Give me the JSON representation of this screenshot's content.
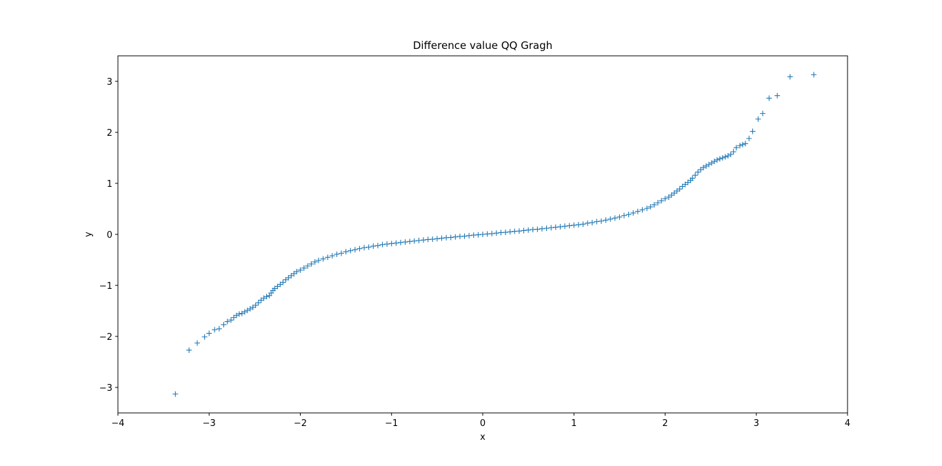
{
  "chart_data": {
    "type": "scatter",
    "title": "Difference value QQ Gragh",
    "xlabel": "x",
    "ylabel": "y",
    "xlim": [
      -4,
      4
    ],
    "ylim": [
      -3.5,
      3.5
    ],
    "xticks": [
      -4,
      -3,
      -2,
      -1,
      0,
      1,
      2,
      3,
      4
    ],
    "xtick_labels": [
      "−4",
      "−3",
      "−2",
      "−1",
      "0",
      "1",
      "2",
      "3",
      "4"
    ],
    "yticks": [
      -3,
      -2,
      -1,
      0,
      1,
      2,
      3
    ],
    "ytick_labels": [
      "−3",
      "−2",
      "−1",
      "0",
      "1",
      "2",
      "3"
    ],
    "grid": false,
    "marker": "+",
    "color": "#1f77b4",
    "series": [
      {
        "points": [
          [
            -3.37,
            -3.13
          ],
          [
            -3.22,
            -2.27
          ],
          [
            -3.13,
            -2.13
          ],
          [
            -3.05,
            -2.01
          ],
          [
            -3.0,
            -1.94
          ],
          [
            -2.94,
            -1.87
          ],
          [
            -2.89,
            -1.85
          ],
          [
            -2.84,
            -1.77
          ],
          [
            -2.8,
            -1.71
          ],
          [
            -2.76,
            -1.68
          ],
          [
            -2.73,
            -1.63
          ],
          [
            -2.7,
            -1.59
          ],
          [
            -2.67,
            -1.56
          ],
          [
            -2.64,
            -1.55
          ],
          [
            -2.61,
            -1.52
          ],
          [
            -2.58,
            -1.49
          ],
          [
            -2.55,
            -1.46
          ],
          [
            -2.52,
            -1.43
          ],
          [
            -2.49,
            -1.39
          ],
          [
            -2.46,
            -1.34
          ],
          [
            -2.43,
            -1.29
          ],
          [
            -2.4,
            -1.25
          ],
          [
            -2.37,
            -1.22
          ],
          [
            -2.34,
            -1.2
          ],
          [
            -2.32,
            -1.15
          ],
          [
            -2.3,
            -1.1
          ],
          [
            -2.28,
            -1.06
          ],
          [
            -2.25,
            -1.02
          ],
          [
            -2.22,
            -0.98
          ],
          [
            -2.19,
            -0.94
          ],
          [
            -2.16,
            -0.89
          ],
          [
            -2.13,
            -0.85
          ],
          [
            -2.1,
            -0.81
          ],
          [
            -2.07,
            -0.77
          ],
          [
            -2.04,
            -0.73
          ],
          [
            -2.0,
            -0.7
          ],
          [
            -1.96,
            -0.66
          ],
          [
            -1.92,
            -0.62
          ],
          [
            -1.88,
            -0.58
          ],
          [
            -1.84,
            -0.54
          ],
          [
            -1.8,
            -0.51
          ],
          [
            -1.75,
            -0.48
          ],
          [
            -1.7,
            -0.45
          ],
          [
            -1.65,
            -0.42
          ],
          [
            -1.6,
            -0.39
          ],
          [
            -1.55,
            -0.37
          ],
          [
            -1.5,
            -0.34
          ],
          [
            -1.45,
            -0.32
          ],
          [
            -1.4,
            -0.3
          ],
          [
            -1.35,
            -0.28
          ],
          [
            -1.3,
            -0.26
          ],
          [
            -1.25,
            -0.25
          ],
          [
            -1.2,
            -0.23
          ],
          [
            -1.15,
            -0.22
          ],
          [
            -1.1,
            -0.2
          ],
          [
            -1.05,
            -0.19
          ],
          [
            -1.0,
            -0.18
          ],
          [
            -0.95,
            -0.17
          ],
          [
            -0.9,
            -0.16
          ],
          [
            -0.85,
            -0.15
          ],
          [
            -0.8,
            -0.14
          ],
          [
            -0.75,
            -0.13
          ],
          [
            -0.7,
            -0.12
          ],
          [
            -0.65,
            -0.11
          ],
          [
            -0.6,
            -0.1
          ],
          [
            -0.55,
            -0.095
          ],
          [
            -0.5,
            -0.085
          ],
          [
            -0.45,
            -0.075
          ],
          [
            -0.4,
            -0.065
          ],
          [
            -0.35,
            -0.06
          ],
          [
            -0.3,
            -0.05
          ],
          [
            -0.25,
            -0.04
          ],
          [
            -0.2,
            -0.035
          ],
          [
            -0.15,
            -0.025
          ],
          [
            -0.1,
            -0.015
          ],
          [
            -0.05,
            -0.008
          ],
          [
            0.0,
            0.0
          ],
          [
            0.05,
            0.008
          ],
          [
            0.1,
            0.015
          ],
          [
            0.15,
            0.025
          ],
          [
            0.2,
            0.035
          ],
          [
            0.25,
            0.04
          ],
          [
            0.3,
            0.05
          ],
          [
            0.35,
            0.06
          ],
          [
            0.4,
            0.065
          ],
          [
            0.45,
            0.075
          ],
          [
            0.5,
            0.085
          ],
          [
            0.55,
            0.095
          ],
          [
            0.6,
            0.1
          ],
          [
            0.65,
            0.11
          ],
          [
            0.7,
            0.12
          ],
          [
            0.75,
            0.13
          ],
          [
            0.8,
            0.14
          ],
          [
            0.85,
            0.15
          ],
          [
            0.9,
            0.16
          ],
          [
            0.95,
            0.17
          ],
          [
            1.0,
            0.18
          ],
          [
            1.05,
            0.19
          ],
          [
            1.1,
            0.2
          ],
          [
            1.15,
            0.22
          ],
          [
            1.2,
            0.23
          ],
          [
            1.25,
            0.25
          ],
          [
            1.3,
            0.26
          ],
          [
            1.35,
            0.28
          ],
          [
            1.4,
            0.3
          ],
          [
            1.45,
            0.32
          ],
          [
            1.5,
            0.34
          ],
          [
            1.55,
            0.37
          ],
          [
            1.6,
            0.39
          ],
          [
            1.65,
            0.42
          ],
          [
            1.7,
            0.45
          ],
          [
            1.75,
            0.48
          ],
          [
            1.8,
            0.51
          ],
          [
            1.84,
            0.54
          ],
          [
            1.88,
            0.58
          ],
          [
            1.92,
            0.62
          ],
          [
            1.96,
            0.66
          ],
          [
            2.0,
            0.7
          ],
          [
            2.04,
            0.73
          ],
          [
            2.07,
            0.77
          ],
          [
            2.1,
            0.81
          ],
          [
            2.13,
            0.85
          ],
          [
            2.16,
            0.89
          ],
          [
            2.19,
            0.94
          ],
          [
            2.22,
            0.98
          ],
          [
            2.25,
            1.02
          ],
          [
            2.28,
            1.06
          ],
          [
            2.3,
            1.1
          ],
          [
            2.33,
            1.16
          ],
          [
            2.36,
            1.22
          ],
          [
            2.39,
            1.27
          ],
          [
            2.42,
            1.31
          ],
          [
            2.45,
            1.34
          ],
          [
            2.48,
            1.37
          ],
          [
            2.51,
            1.4
          ],
          [
            2.54,
            1.43
          ],
          [
            2.57,
            1.46
          ],
          [
            2.6,
            1.48
          ],
          [
            2.63,
            1.5
          ],
          [
            2.66,
            1.52
          ],
          [
            2.69,
            1.54
          ],
          [
            2.72,
            1.57
          ],
          [
            2.75,
            1.62
          ],
          [
            2.78,
            1.7
          ],
          [
            2.82,
            1.74
          ],
          [
            2.85,
            1.76
          ],
          [
            2.88,
            1.78
          ],
          [
            2.92,
            1.88
          ],
          [
            2.96,
            2.02
          ],
          [
            3.02,
            2.26
          ],
          [
            3.07,
            2.37
          ],
          [
            3.14,
            2.67
          ],
          [
            3.23,
            2.72
          ],
          [
            3.37,
            3.09
          ],
          [
            3.63,
            3.13
          ]
        ]
      }
    ]
  }
}
